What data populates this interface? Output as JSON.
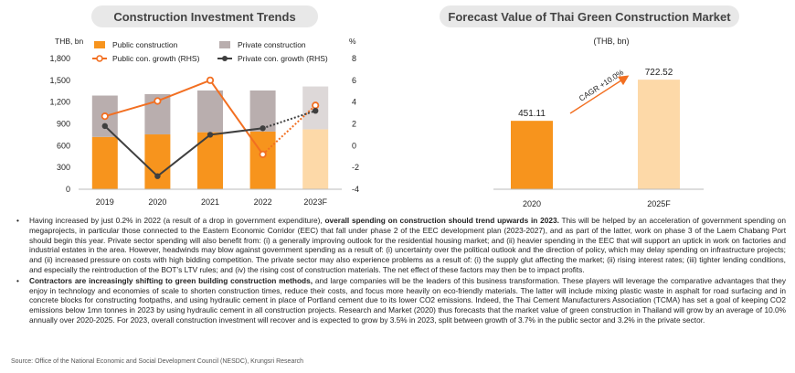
{
  "left_panel": {
    "title": "Construction Investment Trends"
  },
  "right_panel": {
    "title": "Forecast Value of Thai Green Construction Market"
  },
  "chart_data": [
    {
      "type": "bar",
      "title": "Construction Investment Trends",
      "left_axis_label": "THB, bn",
      "right_axis_label": "%",
      "categories": [
        "2019",
        "2020",
        "2021",
        "2022",
        "2023F"
      ],
      "ylim": [
        0,
        1800
      ],
      "yticks": [
        "0",
        "300",
        "600",
        "900",
        "1,200",
        "1,500",
        "1,800"
      ],
      "y2lim": [
        -4,
        8
      ],
      "y2ticks": [
        "-4",
        "-2",
        "0",
        "2",
        "4",
        "6",
        "8"
      ],
      "series": [
        {
          "name": "Public construction",
          "kind": "stacked-bar",
          "color": "#f7941d",
          "forecast_color": "#fdd9a8",
          "values": [
            720,
            755,
            785,
            795,
            825
          ]
        },
        {
          "name": "Private construction",
          "kind": "stacked-bar",
          "color": "#b9aeae",
          "forecast_color": "#ddd8d8",
          "values": [
            570,
            555,
            575,
            565,
            590
          ]
        },
        {
          "name": "Public con. growth (RHS)",
          "kind": "line",
          "color": "#f26f21",
          "values": [
            2.7,
            4.1,
            6.0,
            -0.8,
            3.7
          ]
        },
        {
          "name": "Private con. growth (RHS)",
          "kind": "line",
          "color": "#3f3f3f",
          "values": [
            1.8,
            -2.8,
            1.0,
            1.6,
            3.2
          ]
        }
      ],
      "legend": [
        {
          "name": "Public construction",
          "symbol": "square",
          "color": "#f7941d"
        },
        {
          "name": "Private construction",
          "symbol": "square",
          "color": "#b9aeae"
        },
        {
          "name": "Public con. growth (RHS)",
          "symbol": "line-circle",
          "color": "#f26f21"
        },
        {
          "name": "Private con. growth (RHS)",
          "symbol": "line-dot",
          "color": "#3f3f3f"
        }
      ],
      "legend_position": "top"
    },
    {
      "type": "bar",
      "title": "Forecast Value of Thai Green Construction Market",
      "unit_label": "(THB, bn)",
      "categories": [
        "2020",
        "2025F"
      ],
      "values": [
        451.11,
        722.52
      ],
      "labels": [
        "451.11",
        "722.52"
      ],
      "colors": [
        "#f7941d",
        "#fdd9a8"
      ],
      "annotation": "CAGR +10.0%",
      "ylim": [
        0,
        850
      ]
    }
  ],
  "text": {
    "bullets": [
      {
        "pre": "Having increased by just 0.2% in 2022 (a result of a drop in government expenditure), ",
        "bold": "overall spending on construction should trend upwards in 2023.",
        "post": " This will be helped by an acceleration of government spending on megaprojects, in particular those connected to the Eastern Economic Corridor (EEC) that fall under phase 2 of the EEC development plan (2023-2027), and as part of the latter, work on phase 3 of the Laem Chabang Port should begin this year. Private sector spending will also benefit from: (i) a generally improving outlook for the residential housing market; and (ii) heavier spending in the EEC that will support an uptick in work on factories and industrial estates in the area. However, headwinds may blow against government spending as a result of: (i) uncertainty over the political outlook and the direction of policy, which may delay spending on infrastructure projects; and (ii) increased pressure on costs with high bidding competition. The private sector may also experience problems as a result of: (i) the supply glut affecting the market; (ii) rising interest rates; (iii) tighter lending conditions, and especially the reintroduction of the BOT’s LTV rules; and (iv) the rising cost of construction materials. The net effect of these factors may then be to impact profits."
      },
      {
        "pre": "",
        "bold": "Contractors are increasingly shifting to green building construction methods,",
        "post": " and large companies will be the leaders of this business transformation. These players will leverage the comparative advantages that they enjoy in technology and economies of scale to shorten construction times, reduce their costs, and focus more heavily on eco-friendly materials. The latter will include mixing plastic waste in asphalt for road surfacing and in concrete blocks for constructing footpaths, and using hydraulic cement in place of Portland cement due to its lower CO2 emissions. Indeed, the Thai Cement Manufacturers Association (TCMA) has set a goal of keeping CO2 emissions below 1mn tonnes in 2023 by using hydraulic cement in all construction projects. Research and Market (2020) thus forecasts that the market value of green construction in Thailand will grow by an average of 10.0% annually over 2020-2025. For 2023, overall construction investment will recover and is expected to grow by 3.5% in 2023, split between growth of 3.7% in the public sector and 3.2% in the private sector."
      }
    ],
    "source": "Source: Office of the National Economic and Social Development Council (NESDC), Krungsri Research"
  }
}
